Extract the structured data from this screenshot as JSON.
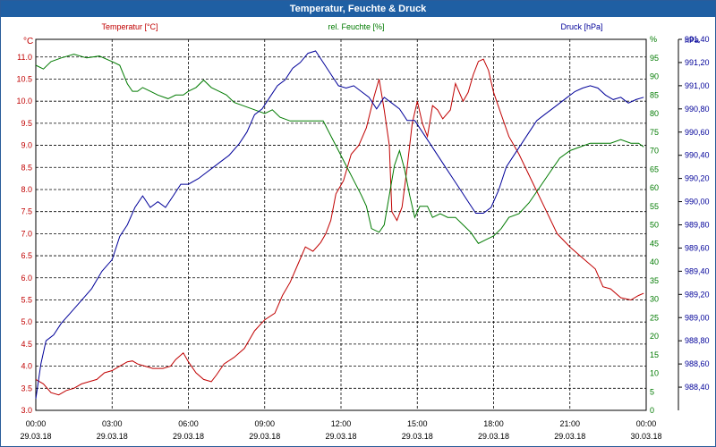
{
  "window": {
    "title": "Temperatur, Feuchte & Druck"
  },
  "colors": {
    "temperature": "#c00000",
    "humidity": "#007a00",
    "pressure": "#000099",
    "grid": "#000000",
    "titlebar": "#1f5fa3"
  },
  "chart_data": {
    "type": "line",
    "title": "Temperatur, Feuchte & Druck",
    "x_ticks": [
      {
        "time": "00:00",
        "date": "29.03.18"
      },
      {
        "time": "03:00",
        "date": "29.03.18"
      },
      {
        "time": "06:00",
        "date": "29.03.18"
      },
      {
        "time": "09:00",
        "date": "29.03.18"
      },
      {
        "time": "12:00",
        "date": "29.03.18"
      },
      {
        "time": "15:00",
        "date": "29.03.18"
      },
      {
        "time": "18:00",
        "date": "29.03.18"
      },
      {
        "time": "21:00",
        "date": "29.03.18"
      },
      {
        "time": "00:00",
        "date": "30.03.18"
      }
    ],
    "xlim_hours": [
      0,
      24
    ],
    "axes": {
      "temperature": {
        "label": "Temperatur [°C]",
        "unit": "°C",
        "range": [
          3.0,
          11.4
        ],
        "ticks": [
          "3.0",
          "3.5",
          "4.0",
          "4.5",
          "5.0",
          "5.5",
          "6.0",
          "6.5",
          "7.0",
          "7.5",
          "8.0",
          "8.5",
          "9.0",
          "9.5",
          "10.0",
          "10.5",
          "11.0"
        ]
      },
      "humidity": {
        "label": "rel. Feuchte [%]",
        "unit": "%",
        "range": [
          0,
          100
        ],
        "ticks": [
          "0",
          "5",
          "10",
          "15",
          "20",
          "25",
          "30",
          "35",
          "40",
          "45",
          "50",
          "55",
          "60",
          "65",
          "70",
          "75",
          "80",
          "85",
          "90",
          "95"
        ],
        "top_label": "%"
      },
      "pressure": {
        "label": "Druck [hPa]",
        "unit": "hPa",
        "range": [
          988.2,
          991.4
        ],
        "ticks": [
          "988,40",
          "988,60",
          "988,80",
          "989,00",
          "989,20",
          "989,40",
          "989,60",
          "989,80",
          "990,00",
          "990,20",
          "990,40",
          "990,60",
          "990,80",
          "991,00",
          "991,20",
          "991,40"
        ]
      }
    },
    "series": [
      {
        "name": "Temperatur [°C]",
        "axis": "temperature",
        "points": [
          [
            0,
            3.7
          ],
          [
            0.3,
            3.6
          ],
          [
            0.6,
            3.4
          ],
          [
            0.9,
            3.35
          ],
          [
            1.2,
            3.45
          ],
          [
            1.5,
            3.5
          ],
          [
            1.8,
            3.6
          ],
          [
            2.1,
            3.65
          ],
          [
            2.4,
            3.7
          ],
          [
            2.7,
            3.85
          ],
          [
            3.0,
            3.9
          ],
          [
            3.3,
            4.0
          ],
          [
            3.6,
            4.1
          ],
          [
            3.8,
            4.12
          ],
          [
            4.0,
            4.05
          ],
          [
            4.3,
            4.0
          ],
          [
            4.6,
            3.95
          ],
          [
            5.0,
            3.95
          ],
          [
            5.3,
            4.0
          ],
          [
            5.5,
            4.15
          ],
          [
            5.8,
            4.3
          ],
          [
            6.0,
            4.1
          ],
          [
            6.3,
            3.85
          ],
          [
            6.6,
            3.7
          ],
          [
            6.9,
            3.65
          ],
          [
            7.1,
            3.8
          ],
          [
            7.4,
            4.05
          ],
          [
            7.8,
            4.2
          ],
          [
            8.2,
            4.4
          ],
          [
            8.6,
            4.8
          ],
          [
            9.0,
            5.05
          ],
          [
            9.4,
            5.2
          ],
          [
            9.7,
            5.6
          ],
          [
            10.0,
            5.9
          ],
          [
            10.3,
            6.3
          ],
          [
            10.6,
            6.7
          ],
          [
            10.9,
            6.6
          ],
          [
            11.2,
            6.8
          ],
          [
            11.4,
            7.0
          ],
          [
            11.6,
            7.3
          ],
          [
            11.8,
            7.9
          ],
          [
            12.1,
            8.2
          ],
          [
            12.4,
            8.8
          ],
          [
            12.7,
            9.0
          ],
          [
            13.0,
            9.4
          ],
          [
            13.3,
            10.1
          ],
          [
            13.5,
            10.5
          ],
          [
            13.7,
            9.8
          ],
          [
            13.9,
            9.0
          ],
          [
            14.0,
            7.5
          ],
          [
            14.2,
            7.3
          ],
          [
            14.4,
            7.6
          ],
          [
            14.6,
            8.5
          ],
          [
            14.8,
            9.5
          ],
          [
            15.0,
            10.0
          ],
          [
            15.2,
            9.5
          ],
          [
            15.4,
            9.2
          ],
          [
            15.6,
            9.9
          ],
          [
            15.8,
            9.8
          ],
          [
            16.0,
            9.6
          ],
          [
            16.3,
            9.8
          ],
          [
            16.5,
            10.4
          ],
          [
            16.8,
            10.0
          ],
          [
            17.0,
            10.2
          ],
          [
            17.2,
            10.6
          ],
          [
            17.4,
            10.9
          ],
          [
            17.6,
            10.95
          ],
          [
            17.8,
            10.7
          ],
          [
            18.0,
            10.2
          ],
          [
            18.3,
            9.7
          ],
          [
            18.6,
            9.2
          ],
          [
            19.0,
            8.8
          ],
          [
            19.5,
            8.2
          ],
          [
            20.0,
            7.6
          ],
          [
            20.5,
            7.0
          ],
          [
            21.0,
            6.7
          ],
          [
            21.5,
            6.45
          ],
          [
            22.0,
            6.2
          ],
          [
            22.3,
            5.8
          ],
          [
            22.6,
            5.75
          ],
          [
            23.0,
            5.55
          ],
          [
            23.4,
            5.5
          ],
          [
            23.7,
            5.6
          ],
          [
            23.9,
            5.65
          ]
        ]
      },
      {
        "name": "rel. Feuchte [%]",
        "axis": "humidity",
        "points": [
          [
            0,
            93
          ],
          [
            0.3,
            92
          ],
          [
            0.6,
            94
          ],
          [
            1.0,
            95
          ],
          [
            1.5,
            96
          ],
          [
            2.0,
            95
          ],
          [
            2.5,
            95.5
          ],
          [
            3.0,
            94
          ],
          [
            3.3,
            93
          ],
          [
            3.6,
            88
          ],
          [
            3.8,
            86
          ],
          [
            4.0,
            86
          ],
          [
            4.2,
            87
          ],
          [
            4.5,
            86
          ],
          [
            4.8,
            85
          ],
          [
            5.2,
            84
          ],
          [
            5.5,
            85
          ],
          [
            5.8,
            85
          ],
          [
            6.0,
            86
          ],
          [
            6.3,
            87
          ],
          [
            6.6,
            89
          ],
          [
            6.9,
            87
          ],
          [
            7.2,
            86
          ],
          [
            7.5,
            85
          ],
          [
            7.8,
            83
          ],
          [
            8.2,
            82
          ],
          [
            8.6,
            81
          ],
          [
            9.0,
            80
          ],
          [
            9.3,
            81
          ],
          [
            9.6,
            79
          ],
          [
            10.0,
            78
          ],
          [
            10.3,
            78
          ],
          [
            10.6,
            78
          ],
          [
            11.0,
            78
          ],
          [
            11.3,
            78
          ],
          [
            11.6,
            74
          ],
          [
            11.9,
            70
          ],
          [
            12.2,
            66
          ],
          [
            12.5,
            62
          ],
          [
            12.8,
            58
          ],
          [
            13.0,
            55
          ],
          [
            13.2,
            49
          ],
          [
            13.5,
            48
          ],
          [
            13.7,
            50
          ],
          [
            13.9,
            58
          ],
          [
            14.1,
            66
          ],
          [
            14.3,
            70
          ],
          [
            14.5,
            65
          ],
          [
            14.7,
            58
          ],
          [
            14.9,
            52
          ],
          [
            15.1,
            55
          ],
          [
            15.4,
            55
          ],
          [
            15.6,
            52
          ],
          [
            15.9,
            53
          ],
          [
            16.2,
            52
          ],
          [
            16.5,
            52
          ],
          [
            16.8,
            50
          ],
          [
            17.1,
            48
          ],
          [
            17.4,
            45
          ],
          [
            17.7,
            46
          ],
          [
            18.0,
            47
          ],
          [
            18.3,
            49
          ],
          [
            18.6,
            52
          ],
          [
            19.0,
            53
          ],
          [
            19.4,
            56
          ],
          [
            19.8,
            60
          ],
          [
            20.2,
            64
          ],
          [
            20.6,
            68
          ],
          [
            21.0,
            70
          ],
          [
            21.4,
            71
          ],
          [
            21.8,
            72
          ],
          [
            22.2,
            72
          ],
          [
            22.6,
            72
          ],
          [
            23.0,
            73
          ],
          [
            23.4,
            72
          ],
          [
            23.7,
            72
          ],
          [
            23.9,
            71
          ]
        ]
      },
      {
        "name": "Druck [hPa]",
        "axis": "pressure",
        "points": [
          [
            0,
            988.3
          ],
          [
            0.2,
            988.6
          ],
          [
            0.4,
            988.8
          ],
          [
            0.7,
            988.85
          ],
          [
            1.0,
            988.95
          ],
          [
            1.4,
            989.05
          ],
          [
            1.8,
            989.15
          ],
          [
            2.2,
            989.25
          ],
          [
            2.6,
            989.4
          ],
          [
            3.0,
            989.5
          ],
          [
            3.3,
            989.7
          ],
          [
            3.6,
            989.8
          ],
          [
            3.9,
            989.95
          ],
          [
            4.2,
            990.05
          ],
          [
            4.5,
            989.95
          ],
          [
            4.8,
            990.0
          ],
          [
            5.1,
            989.95
          ],
          [
            5.4,
            990.05
          ],
          [
            5.7,
            990.15
          ],
          [
            6.0,
            990.15
          ],
          [
            6.4,
            990.2
          ],
          [
            6.7,
            990.25
          ],
          [
            7.0,
            990.3
          ],
          [
            7.3,
            990.35
          ],
          [
            7.6,
            990.4
          ],
          [
            8.0,
            990.5
          ],
          [
            8.3,
            990.6
          ],
          [
            8.6,
            990.75
          ],
          [
            8.9,
            990.8
          ],
          [
            9.2,
            990.9
          ],
          [
            9.5,
            991.0
          ],
          [
            9.8,
            991.05
          ],
          [
            10.1,
            991.15
          ],
          [
            10.4,
            991.2
          ],
          [
            10.7,
            991.28
          ],
          [
            11.0,
            991.3
          ],
          [
            11.3,
            991.2
          ],
          [
            11.6,
            991.1
          ],
          [
            11.9,
            991.0
          ],
          [
            12.2,
            990.98
          ],
          [
            12.5,
            991.0
          ],
          [
            12.8,
            990.95
          ],
          [
            13.1,
            990.9
          ],
          [
            13.4,
            990.8
          ],
          [
            13.7,
            990.9
          ],
          [
            14.0,
            990.85
          ],
          [
            14.3,
            990.8
          ],
          [
            14.6,
            990.7
          ],
          [
            14.9,
            990.7
          ],
          [
            15.2,
            990.6
          ],
          [
            15.5,
            990.5
          ],
          [
            15.8,
            990.4
          ],
          [
            16.1,
            990.3
          ],
          [
            16.4,
            990.2
          ],
          [
            16.7,
            990.1
          ],
          [
            17.0,
            990.0
          ],
          [
            17.3,
            989.9
          ],
          [
            17.6,
            989.9
          ],
          [
            17.9,
            989.95
          ],
          [
            18.2,
            990.1
          ],
          [
            18.5,
            990.3
          ],
          [
            18.8,
            990.4
          ],
          [
            19.1,
            990.5
          ],
          [
            19.4,
            990.6
          ],
          [
            19.7,
            990.7
          ],
          [
            20.0,
            990.75
          ],
          [
            20.3,
            990.8
          ],
          [
            20.6,
            990.85
          ],
          [
            20.9,
            990.9
          ],
          [
            21.2,
            990.95
          ],
          [
            21.5,
            990.98
          ],
          [
            21.8,
            991.0
          ],
          [
            22.1,
            990.98
          ],
          [
            22.4,
            990.92
          ],
          [
            22.7,
            990.88
          ],
          [
            23.0,
            990.9
          ],
          [
            23.3,
            990.85
          ],
          [
            23.6,
            990.88
          ],
          [
            23.9,
            990.9
          ]
        ]
      }
    ]
  }
}
